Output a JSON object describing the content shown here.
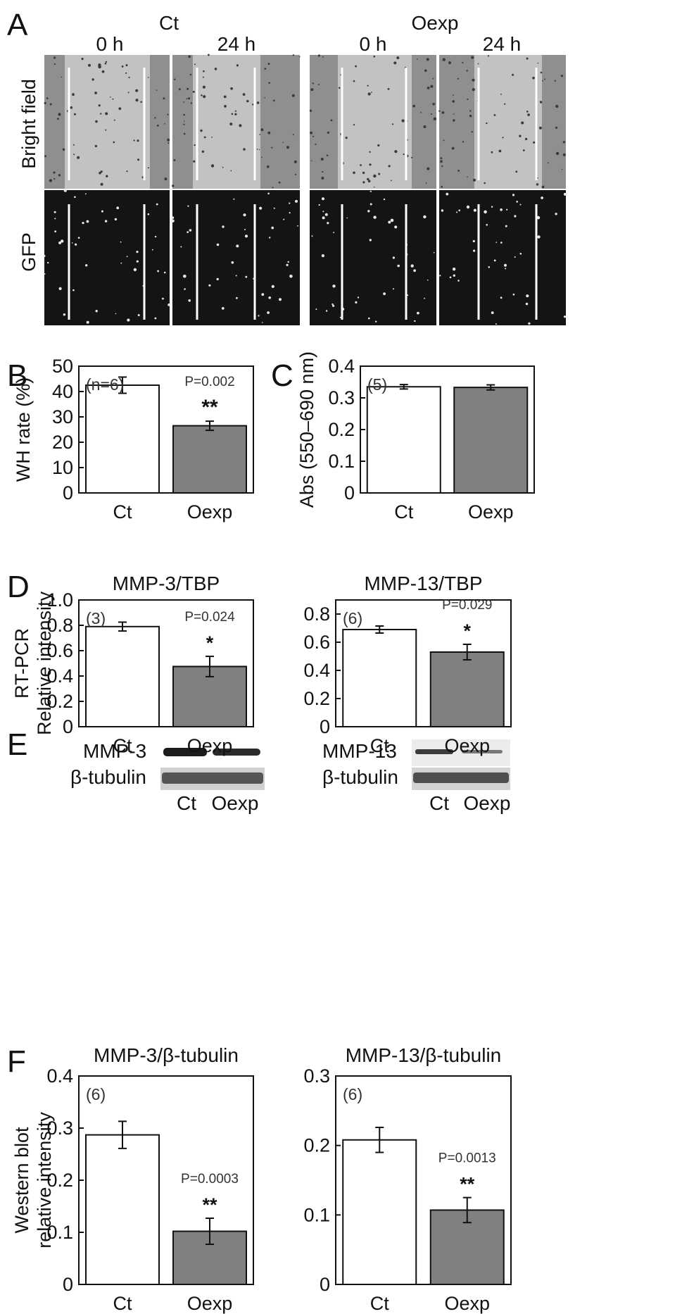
{
  "panel_a": {
    "label": "A",
    "groups": [
      "Ct",
      "Oexp"
    ],
    "times": [
      "0 h",
      "24 h",
      "0 h",
      "24 h"
    ],
    "rows": [
      "Bright field",
      "GFP"
    ]
  },
  "panel_e": {
    "label": "E",
    "blots": [
      {
        "target": "MMP-3",
        "control": "β-tubulin",
        "lanes": [
          "Ct",
          "Oexp"
        ]
      },
      {
        "target": "MMP-13",
        "control": "β-tubulin",
        "lanes": [
          "Ct",
          "Oexp"
        ]
      }
    ]
  },
  "chart_data": [
    {
      "panel": "B",
      "type": "bar",
      "title": "",
      "xlabel": "",
      "ylabel": "WH rate (%)",
      "categories": [
        "Ct",
        "Oexp"
      ],
      "values": [
        42.5,
        26.5
      ],
      "errors": [
        3.2,
        1.8
      ],
      "ylim": [
        0,
        50
      ],
      "yticks": [
        "0",
        "10",
        "20",
        "30",
        "40",
        "50"
      ],
      "n_label": "(n=6)",
      "p_label": "P=0.002",
      "sig": "**",
      "colors": [
        "#ffffff",
        "#808080"
      ]
    },
    {
      "panel": "C",
      "type": "bar",
      "title": "",
      "xlabel": "",
      "ylabel": "Abs (550–690 nm)",
      "categories": [
        "Ct",
        "Oexp"
      ],
      "values": [
        0.335,
        0.333
      ],
      "errors": [
        0.007,
        0.008
      ],
      "ylim": [
        0,
        0.4
      ],
      "yticks": [
        "0",
        "0.1",
        "0.2",
        "0.3",
        "0.4"
      ],
      "n_label": "(5)",
      "p_label": "",
      "sig": "",
      "colors": [
        "#ffffff",
        "#808080"
      ]
    },
    {
      "panel": "D",
      "type": "bar",
      "title": "MMP-3/TBP",
      "xlabel": "",
      "ylabel": [
        "RT-PCR",
        "Relative intensity"
      ],
      "categories": [
        "Ct",
        "Oexp"
      ],
      "values": [
        0.79,
        0.475
      ],
      "errors": [
        0.035,
        0.08
      ],
      "ylim": [
        0,
        1.0
      ],
      "yticks": [
        "0",
        "0.2",
        "0.4",
        "0.6",
        "0.8",
        "1.0"
      ],
      "n_label": "(3)",
      "p_label": "P=0.024",
      "sig": "*",
      "colors": [
        "#ffffff",
        "#808080"
      ]
    },
    {
      "panel": "",
      "type": "bar",
      "title": "MMP-13/TBP",
      "xlabel": "",
      "ylabel": "",
      "categories": [
        "Ct",
        "Oexp"
      ],
      "values": [
        0.69,
        0.53
      ],
      "errors": [
        0.025,
        0.055
      ],
      "ylim": [
        0,
        0.9
      ],
      "yticks": [
        "0",
        "0.2",
        "0.4",
        "0.6",
        "0.8"
      ],
      "n_label": "(6)",
      "p_label": "P=0.029",
      "sig": "*",
      "colors": [
        "#ffffff",
        "#808080"
      ]
    },
    {
      "panel": "F",
      "type": "bar",
      "title": "MMP-3/β-tubulin",
      "xlabel": "",
      "ylabel": [
        "Western blot",
        "relative intensity"
      ],
      "categories": [
        "Ct",
        "Oexp"
      ],
      "values": [
        0.287,
        0.102
      ],
      "errors": [
        0.026,
        0.025
      ],
      "ylim": [
        0,
        0.4
      ],
      "yticks": [
        "0",
        "0.1",
        "0.2",
        "0.3",
        "0.4"
      ],
      "n_label": "(6)",
      "p_label": "P=0.0003",
      "sig": "**",
      "colors": [
        "#ffffff",
        "#808080"
      ]
    },
    {
      "panel": "",
      "type": "bar",
      "title": "MMP-13/β-tubulin",
      "xlabel": "",
      "ylabel": "",
      "categories": [
        "Ct",
        "Oexp"
      ],
      "values": [
        0.208,
        0.107
      ],
      "errors": [
        0.018,
        0.018
      ],
      "ylim": [
        0,
        0.3
      ],
      "yticks": [
        "0",
        "0.1",
        "0.2",
        "0.3"
      ],
      "n_label": "(6)",
      "p_label": "P=0.0013",
      "sig": "**",
      "colors": [
        "#ffffff",
        "#808080"
      ]
    }
  ]
}
